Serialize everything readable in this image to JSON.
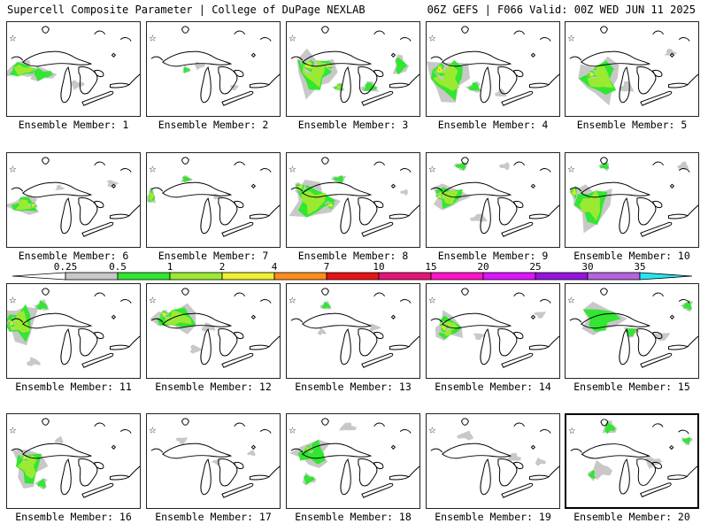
{
  "header": {
    "title_left": "Supercell Composite Parameter | College of DuPage NEXLAB",
    "title_right": "06Z GEFS | F066 Valid: 00Z WED JUN 11 2025"
  },
  "panel_label_prefix": "Ensemble Member:",
  "selected_member": "20",
  "members": [
    {
      "member": "1",
      "label": "Ensemble Member: 1",
      "blobs": [
        [
          18,
          55,
          26,
          12,
          2
        ],
        [
          40,
          60,
          18,
          10,
          1
        ],
        [
          80,
          72,
          10,
          6,
          0
        ]
      ]
    },
    {
      "member": "2",
      "label": "Ensemble Member: 2",
      "blobs": [
        [
          45,
          55,
          6,
          5,
          1
        ],
        [
          60,
          50,
          8,
          5,
          0
        ],
        [
          100,
          75,
          6,
          4,
          0
        ]
      ]
    },
    {
      "member": "3",
      "label": "Ensemble Member: 3",
      "blobs": [
        [
          32,
          58,
          30,
          30,
          2
        ],
        [
          25,
          50,
          12,
          10,
          3
        ],
        [
          48,
          50,
          8,
          6,
          4
        ],
        [
          60,
          75,
          8,
          6,
          2
        ],
        [
          95,
          75,
          12,
          8,
          1
        ],
        [
          130,
          50,
          10,
          15,
          1
        ]
      ]
    },
    {
      "member": "4",
      "label": "Ensemble Member: 4",
      "blobs": [
        [
          25,
          65,
          30,
          32,
          2
        ],
        [
          15,
          55,
          10,
          12,
          4
        ],
        [
          55,
          75,
          10,
          8,
          1
        ],
        [
          85,
          82,
          8,
          6,
          0
        ]
      ]
    },
    {
      "member": "5",
      "label": "Ensemble Member: 5",
      "blobs": [
        [
          40,
          65,
          30,
          30,
          2
        ],
        [
          30,
          60,
          8,
          6,
          3
        ],
        [
          70,
          75,
          10,
          8,
          0
        ],
        [
          120,
          35,
          8,
          5,
          0
        ]
      ]
    },
    {
      "member": "6",
      "label": "Ensemble Member: 6",
      "blobs": [
        [
          20,
          60,
          22,
          14,
          2
        ],
        [
          30,
          60,
          6,
          5,
          3
        ],
        [
          60,
          40,
          6,
          4,
          0
        ],
        [
          120,
          35,
          8,
          5,
          0
        ]
      ]
    },
    {
      "member": "7",
      "label": "Ensemble Member: 7",
      "blobs": [
        [
          5,
          50,
          6,
          12,
          2
        ],
        [
          45,
          30,
          8,
          5,
          1
        ],
        [
          80,
          50,
          6,
          4,
          0
        ]
      ]
    },
    {
      "member": "8",
      "label": "Ensemble Member: 8",
      "blobs": [
        [
          30,
          55,
          32,
          28,
          2
        ],
        [
          15,
          40,
          8,
          8,
          3
        ],
        [
          50,
          60,
          8,
          6,
          3
        ],
        [
          60,
          30,
          10,
          6,
          1
        ],
        [
          135,
          45,
          6,
          4,
          0
        ]
      ]
    },
    {
      "member": "9",
      "label": "Ensemble Member: 9",
      "blobs": [
        [
          25,
          50,
          25,
          18,
          2
        ],
        [
          15,
          50,
          6,
          5,
          3
        ],
        [
          40,
          15,
          10,
          6,
          1
        ],
        [
          90,
          15,
          8,
          5,
          0
        ],
        [
          60,
          75,
          12,
          6,
          0
        ]
      ]
    },
    {
      "member": "10",
      "label": "Ensemble Member: 10",
      "blobs": [
        [
          30,
          60,
          28,
          32,
          2
        ],
        [
          10,
          45,
          6,
          10,
          4
        ],
        [
          45,
          15,
          8,
          6,
          1
        ],
        [
          135,
          15,
          8,
          6,
          0
        ]
      ]
    },
    {
      "member": "11",
      "label": "Ensemble Member: 11",
      "blobs": [
        [
          15,
          45,
          25,
          28,
          2
        ],
        [
          5,
          45,
          6,
          8,
          4
        ],
        [
          40,
          25,
          10,
          8,
          1
        ],
        [
          30,
          90,
          10,
          6,
          0
        ]
      ]
    },
    {
      "member": "12",
      "label": "Ensemble Member: 12",
      "blobs": [
        [
          35,
          40,
          35,
          18,
          2
        ],
        [
          20,
          35,
          8,
          6,
          3
        ],
        [
          70,
          50,
          10,
          6,
          0
        ],
        [
          55,
          75,
          8,
          6,
          0
        ]
      ]
    },
    {
      "member": "13",
      "label": "Ensemble Member: 13",
      "blobs": [
        [
          45,
          25,
          8,
          6,
          1
        ],
        [
          40,
          55,
          6,
          5,
          0
        ],
        [
          100,
          50,
          8,
          5,
          0
        ]
      ]
    },
    {
      "member": "14",
      "label": "Ensemble Member: 14",
      "blobs": [
        [
          25,
          50,
          20,
          20,
          2
        ],
        [
          20,
          50,
          8,
          8,
          4
        ],
        [
          60,
          60,
          8,
          5,
          0
        ],
        [
          130,
          35,
          8,
          5,
          0
        ]
      ]
    },
    {
      "member": "15",
      "label": "Ensemble Member: 15",
      "blobs": [
        [
          40,
          40,
          30,
          22,
          1
        ],
        [
          75,
          55,
          10,
          8,
          1
        ],
        [
          110,
          60,
          12,
          6,
          0
        ],
        [
          140,
          25,
          8,
          8,
          1
        ]
      ]
    },
    {
      "member": "16",
      "label": "Ensemble Member: 16",
      "blobs": [
        [
          25,
          60,
          22,
          30,
          2
        ],
        [
          20,
          50,
          6,
          6,
          3
        ],
        [
          40,
          80,
          8,
          8,
          1
        ],
        [
          60,
          30,
          6,
          5,
          0
        ]
      ]
    },
    {
      "member": "17",
      "label": "Ensemble Member: 17",
      "blobs": [
        [
          40,
          30,
          8,
          5,
          0
        ],
        [
          80,
          55,
          6,
          4,
          0
        ],
        [
          120,
          45,
          6,
          4,
          0
        ]
      ]
    },
    {
      "member": "18",
      "label": "Ensemble Member: 18",
      "blobs": [
        [
          30,
          45,
          25,
          20,
          1
        ],
        [
          25,
          40,
          8,
          6,
          2
        ],
        [
          70,
          15,
          12,
          6,
          0
        ],
        [
          25,
          75,
          10,
          8,
          1
        ]
      ]
    },
    {
      "member": "19",
      "label": "Ensemble Member: 19",
      "blobs": [
        [
          45,
          25,
          12,
          6,
          0
        ],
        [
          100,
          50,
          10,
          6,
          0
        ],
        [
          130,
          55,
          8,
          5,
          0
        ]
      ]
    },
    {
      "member": "20",
      "label": "Ensemble Member: 20",
      "blobs": [
        [
          50,
          15,
          10,
          10,
          1
        ],
        [
          40,
          65,
          15,
          12,
          0
        ],
        [
          100,
          55,
          12,
          8,
          0
        ],
        [
          140,
          30,
          8,
          6,
          1
        ],
        [
          30,
          70,
          6,
          8,
          1
        ]
      ]
    }
  ],
  "colorbar": {
    "labels": [
      "0.25",
      "0.5",
      "1",
      "2",
      "4",
      "7",
      "10",
      "15",
      "20",
      "25",
      "30",
      "35"
    ],
    "colors": [
      "#c8c8c8",
      "#32e632",
      "#9bea32",
      "#f0f032",
      "#ff8c1e",
      "#e61414",
      "#e61478",
      "#ff14c8",
      "#dc14ff",
      "#9614dc",
      "#b464dc",
      "#28e6f0"
    ]
  }
}
